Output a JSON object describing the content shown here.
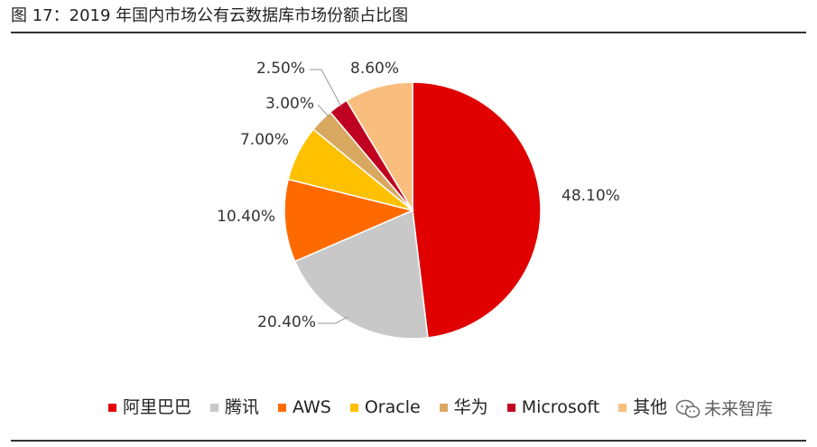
{
  "title": "图 17：2019 年国内市场公有云数据库市场份额占比图",
  "chart_data": {
    "type": "pie",
    "title": "图 17：2019 年国内市场公有云数据库市场份额占比图",
    "start": "12 o'clock, clockwise",
    "slices": [
      {
        "name": "阿里巴巴",
        "value": 48.1,
        "label": "48.10%",
        "color": "#E00000"
      },
      {
        "name": "腾讯",
        "value": 20.4,
        "label": "20.40%",
        "color": "#C8C8C8"
      },
      {
        "name": "AWS",
        "value": 10.4,
        "label": "10.40%",
        "color": "#FF6A00"
      },
      {
        "name": "Oracle",
        "value": 7.0,
        "label": "7.00%",
        "color": "#FFC000"
      },
      {
        "name": "华为",
        "value": 3.0,
        "label": "3.00%",
        "color": "#D9A860"
      },
      {
        "name": "Microsoft",
        "value": 2.5,
        "label": "2.50%",
        "color": "#C00020"
      },
      {
        "name": "其他",
        "value": 8.6,
        "label": "8.60%",
        "color": "#F9BE7E"
      }
    ],
    "legend_position": "bottom"
  },
  "watermark": {
    "text": "未来智库",
    "icon": "wechat-icon"
  }
}
